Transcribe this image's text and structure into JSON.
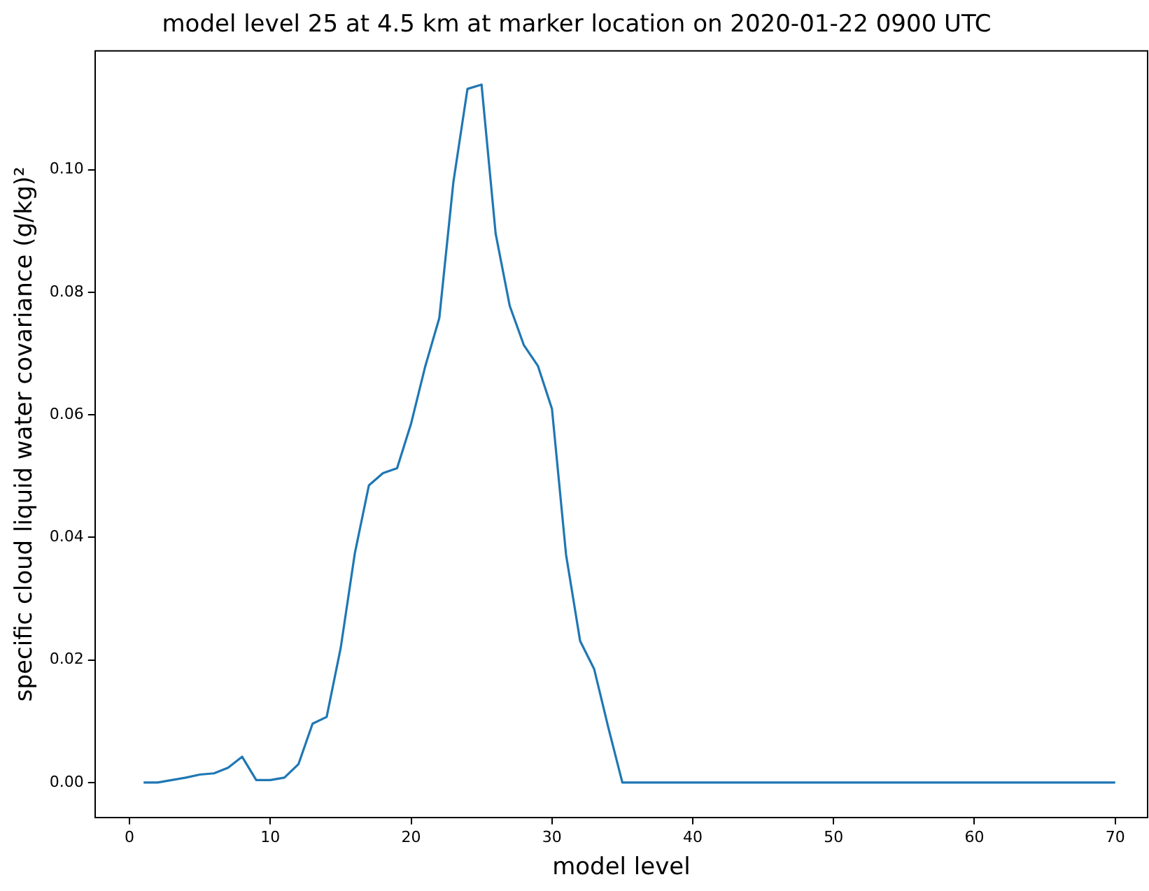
{
  "chart_data": {
    "type": "line",
    "title": "model level 25 at 4.5 km at marker location on 2020-01-22 0900 UTC",
    "xlabel": "model level",
    "ylabel": "specific cloud liquid water covariance (g/kg)²",
    "x": [
      1,
      2,
      3,
      4,
      5,
      6,
      7,
      8,
      9,
      10,
      11,
      12,
      13,
      14,
      15,
      16,
      17,
      18,
      19,
      20,
      21,
      22,
      23,
      24,
      25,
      26,
      27,
      28,
      29,
      30,
      31,
      32,
      33,
      34,
      35,
      36,
      37,
      38,
      39,
      40,
      41,
      42,
      43,
      44,
      45,
      46,
      47,
      48,
      49,
      50,
      51,
      52,
      53,
      54,
      55,
      56,
      57,
      58,
      59,
      60,
      61,
      62,
      63,
      64,
      65,
      66,
      67,
      68,
      69,
      70
    ],
    "series": [
      {
        "color": "#1f77b4",
        "values": [
          0,
          0,
          0.0004,
          0.0008,
          0.0013,
          0.0015,
          0.0024,
          0.0042,
          0.0004,
          0.0004,
          0.0008,
          0.003,
          0.0096,
          0.0107,
          0.022,
          0.0374,
          0.0485,
          0.0505,
          0.0513,
          0.0586,
          0.0679,
          0.0758,
          0.098,
          0.1132,
          0.1139,
          0.0896,
          0.0778,
          0.0714,
          0.068,
          0.061,
          0.0372,
          0.0231,
          0.0185,
          0.009,
          0,
          0,
          0,
          0,
          0,
          0,
          0,
          0,
          0,
          0,
          0,
          0,
          0,
          0,
          0,
          0,
          0,
          0,
          0,
          0,
          0,
          0,
          0,
          0,
          0,
          0,
          0,
          0,
          0,
          0,
          0,
          0,
          0,
          0,
          0,
          0
        ]
      }
    ],
    "xlim": [
      -2.45,
      72.3
    ],
    "ylim": [
      -0.0057,
      0.1194
    ],
    "xticks": [
      0,
      10,
      20,
      30,
      40,
      50,
      60,
      70
    ],
    "yticks": [
      {
        "value": 0,
        "label": "0.00"
      },
      {
        "value": 0.02,
        "label": "0.02"
      },
      {
        "value": 0.04,
        "label": "0.04"
      },
      {
        "value": 0.06,
        "label": "0.06"
      },
      {
        "value": 0.08,
        "label": "0.08"
      },
      {
        "value": 0.1,
        "label": "0.10"
      }
    ],
    "grid": false,
    "legend": false,
    "marker": "none",
    "line_style": "solid"
  }
}
